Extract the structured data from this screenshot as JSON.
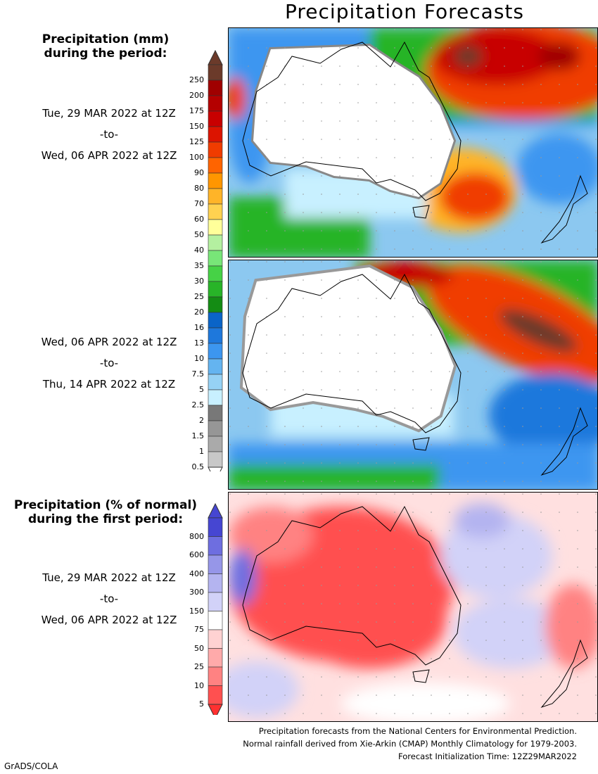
{
  "title": "Precipitation Forecasts",
  "legend_top": {
    "heading_line1": "Precipitation (mm)",
    "heading_line2": "during the period:",
    "scale_labels": [
      "250",
      "200",
      "175",
      "150",
      "125",
      "100",
      "90",
      "80",
      "70",
      "60",
      "50",
      "40",
      "35",
      "30",
      "25",
      "20",
      "16",
      "13",
      "10",
      "7.5",
      "5",
      "2.5",
      "2",
      "1.5",
      "1",
      "0.5"
    ],
    "scale_colors": [
      "#6b3a2a",
      "#a00000",
      "#b40000",
      "#c80000",
      "#dc1400",
      "#f03c00",
      "#ff6400",
      "#ff9600",
      "#ffb428",
      "#ffd250",
      "#ffff9a",
      "#b4f0a0",
      "#78e678",
      "#46d246",
      "#28b428",
      "#148c14",
      "#0a64c8",
      "#1e78dc",
      "#3c96f0",
      "#64b4f0",
      "#96d2f5",
      "#c8f0ff",
      "#787878",
      "#969696",
      "#aaaaaa",
      "#c8c8c8"
    ],
    "period1": {
      "from": "Tue, 29 MAR 2022 at 12Z",
      "sep": "-to-",
      "to": "Wed, 06 APR 2022 at 12Z"
    },
    "period2": {
      "from": "Wed, 06 APR 2022 at 12Z",
      "sep": "-to-",
      "to": "Thu, 14 APR 2022 at 12Z"
    }
  },
  "legend_bottom": {
    "heading_line1": "Precipitation (% of normal)",
    "heading_line2": "during the first period:",
    "scale_labels": [
      "800",
      "600",
      "400",
      "300",
      "150",
      "75",
      "50",
      "25",
      "10",
      "5"
    ],
    "scale_colors": [
      "#4646d2",
      "#6e6ee0",
      "#9696e8",
      "#b4b4f0",
      "#d2d2f8",
      "#ffffff",
      "#ffd2d2",
      "#ffaaaa",
      "#ff8282",
      "#ff5050"
    ],
    "period": {
      "from": "Tue, 29 MAR 2022 at 12Z",
      "sep": "-to-",
      "to": "Wed, 06 APR 2022 at 12Z"
    }
  },
  "footer": {
    "line1": "Precipitation forecasts from the National Centers for Environmental Prediction.",
    "line2": "Normal rainfall derived from Xie-Arkin (CMAP) Monthly Climatology for 1979-2003.",
    "line3": "Forecast Initialization Time: 12Z29MAR2022"
  },
  "credit": "GrADS/COLA"
}
